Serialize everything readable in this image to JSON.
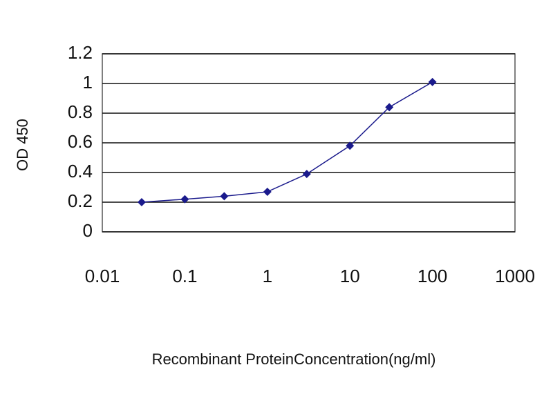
{
  "chart_data": {
    "type": "line",
    "x_label": "Recombinant ProteinConcentration(ng/ml)",
    "y_label": "OD 450",
    "x": [
      0.03,
      0.1,
      0.3,
      1,
      3,
      10,
      30,
      100
    ],
    "series": [
      {
        "color": "#1a1a8c",
        "values": [
          0.2,
          0.22,
          0.24,
          0.27,
          0.39,
          0.58,
          0.84,
          1.01
        ]
      }
    ],
    "xscale": "log",
    "xlim": [
      0.01,
      1000
    ],
    "xticks": [
      0.01,
      0.1,
      1,
      10,
      100,
      1000
    ],
    "ylim": [
      0,
      1.2
    ],
    "yticks": [
      0,
      0.2,
      0.4,
      0.6,
      0.8,
      1,
      1.2
    ],
    "grid": true
  }
}
